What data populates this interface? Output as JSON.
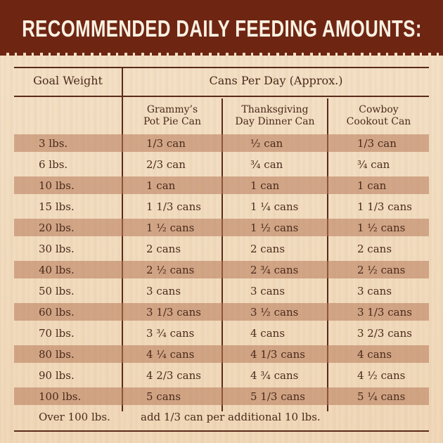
{
  "title": "RECOMMENDED DAILY FEEDING AMOUNTS:",
  "headers": {
    "goal_weight": "Goal Weight",
    "cans_per_day": "Cans Per Day (Approx.)"
  },
  "columns": [
    {
      "line1": "Grammy’s",
      "line2": "Pot Pie Can"
    },
    {
      "line1": "Thanksgiving",
      "line2": "Day Dinner Can"
    },
    {
      "line1": "Cowboy",
      "line2": "Cookout Can"
    }
  ],
  "rows": [
    {
      "weight": "3 lbs.",
      "grammys": "1/3 can",
      "thanksgiving": "½ can",
      "cowboy": "1/3 can"
    },
    {
      "weight": "6 lbs.",
      "grammys": "2/3 can",
      "thanksgiving": "¾ can",
      "cowboy": "¾ can"
    },
    {
      "weight": "10 lbs.",
      "grammys": "1 can",
      "thanksgiving": "1 can",
      "cowboy": "1 can"
    },
    {
      "weight": "15 lbs.",
      "grammys": "1 1/3 cans",
      "thanksgiving": "1 ¼ cans",
      "cowboy": "1 1/3 cans"
    },
    {
      "weight": "20 lbs.",
      "grammys": "1 ½ cans",
      "thanksgiving": "1 ½ cans",
      "cowboy": "1 ½ cans"
    },
    {
      "weight": "30 lbs.",
      "grammys": "2 cans",
      "thanksgiving": "2 cans",
      "cowboy": "2 cans"
    },
    {
      "weight": "40 lbs.",
      "grammys": "2 ½ cans",
      "thanksgiving": "2 ¾ cans",
      "cowboy": "2 ½ cans"
    },
    {
      "weight": "50 lbs.",
      "grammys": "3 cans",
      "thanksgiving": "3 cans",
      "cowboy": "3 cans"
    },
    {
      "weight": "60 lbs.",
      "grammys": "3 1/3 cans",
      "thanksgiving": "3 ½ cans",
      "cowboy": "3 1/3 cans"
    },
    {
      "weight": "70 lbs.",
      "grammys": "3 ¾ cans",
      "thanksgiving": "4 cans",
      "cowboy": "3 2/3 cans"
    },
    {
      "weight": "80 lbs.",
      "grammys": "4 ¼ cans",
      "thanksgiving": "4 1/3 cans",
      "cowboy": "4 cans"
    },
    {
      "weight": "90 lbs.",
      "grammys": "4 2/3 cans",
      "thanksgiving": "4 ¾ cans",
      "cowboy": "4 ½ cans"
    },
    {
      "weight": "100 lbs.",
      "grammys": "5 cans",
      "thanksgiving": "5 1/3 cans",
      "cowboy": "5 ¼ cans"
    }
  ],
  "footer": {
    "weight": "Over 100 lbs.",
    "note": "add 1/3 can per additional 10 lbs."
  },
  "colors": {
    "title_bar": "#6e2613",
    "band": "#c58a6d",
    "text": "#4a2a1a",
    "background": "#f1dcc0"
  }
}
